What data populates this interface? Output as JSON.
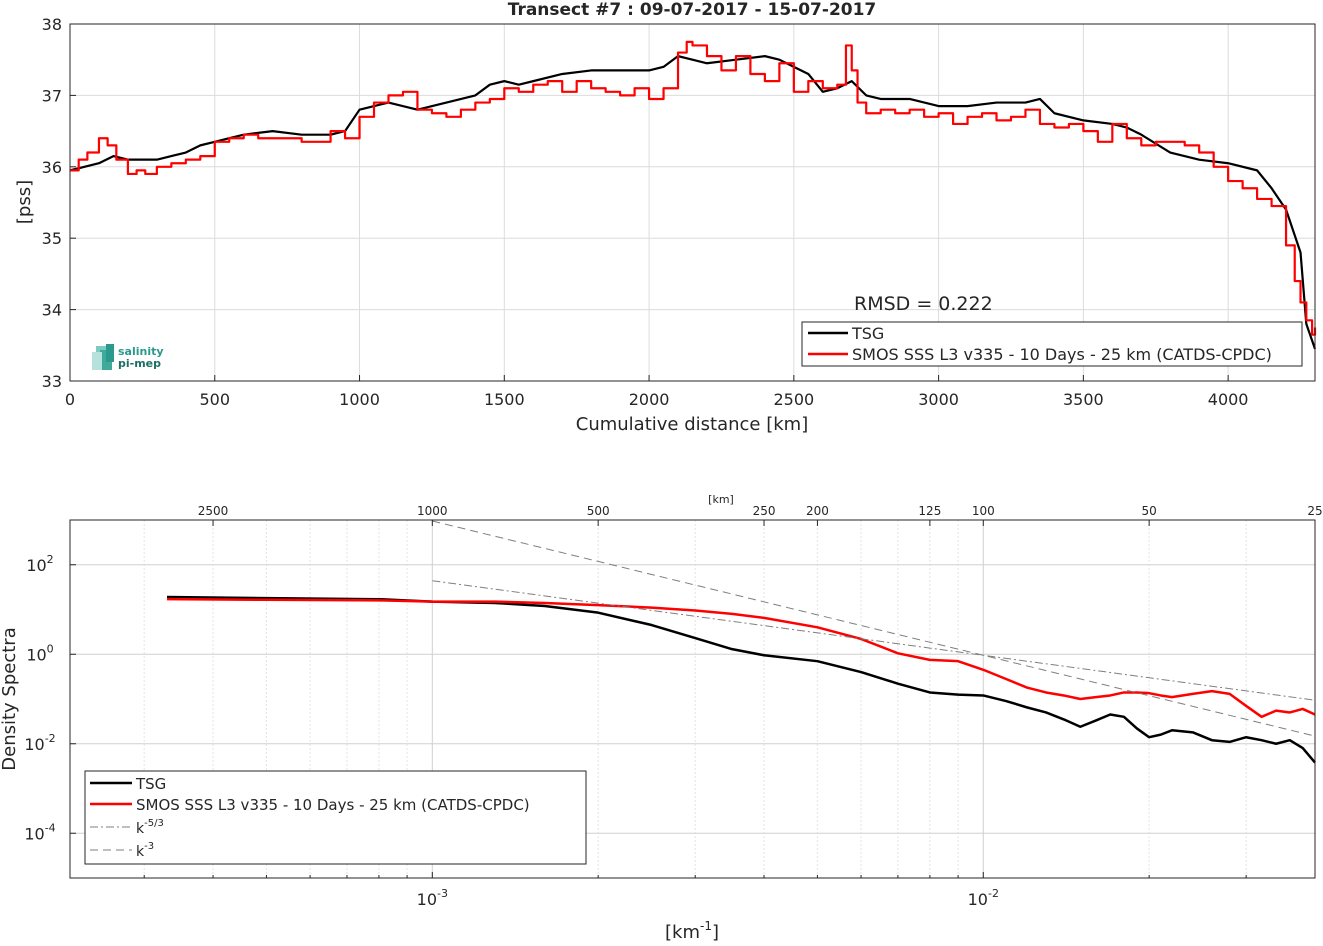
{
  "logo_text": [
    "salinity",
    "pi-mep"
  ],
  "colors": {
    "tsg": "#000000",
    "smos": "#ff0000",
    "ref_lines": "#7f7f7f",
    "grid": "#dcdcdc",
    "logo": "#2a9a8e"
  },
  "chart_data": [
    {
      "type": "line",
      "title": "Transect #7 : 09-07-2017 - 15-07-2017",
      "xlabel": "Cumulative distance [km]",
      "ylabel": "[pss]",
      "xlim": [
        0,
        4300
      ],
      "ylim": [
        33,
        38
      ],
      "xticks": [
        0,
        500,
        1000,
        1500,
        2000,
        2500,
        3000,
        3500,
        4000
      ],
      "yticks": [
        33,
        34,
        35,
        36,
        37,
        38
      ],
      "grid": true,
      "annotation": "RMSD = 0.222",
      "legend": {
        "position": "bottom-right",
        "entries": [
          "TSG",
          "SMOS SSS L3 v335 - 10 Days - 25 km (CATDS-CPDC)"
        ]
      },
      "series": [
        {
          "name": "TSG",
          "x": [
            0,
            50,
            100,
            150,
            200,
            250,
            300,
            350,
            400,
            450,
            500,
            550,
            600,
            700,
            800,
            900,
            950,
            1000,
            1100,
            1200,
            1300,
            1400,
            1450,
            1500,
            1550,
            1600,
            1700,
            1800,
            1900,
            2000,
            2050,
            2100,
            2150,
            2200,
            2300,
            2400,
            2450,
            2500,
            2550,
            2600,
            2650,
            2700,
            2750,
            2800,
            2900,
            3000,
            3100,
            3200,
            3300,
            3350,
            3400,
            3500,
            3600,
            3650,
            3700,
            3800,
            3900,
            4000,
            4100,
            4150,
            4200,
            4250,
            4270,
            4300
          ],
          "y": [
            35.95,
            36.0,
            36.05,
            36.15,
            36.1,
            36.1,
            36.1,
            36.15,
            36.2,
            36.3,
            36.35,
            36.4,
            36.45,
            36.5,
            36.45,
            36.45,
            36.5,
            36.8,
            36.9,
            36.8,
            36.9,
            37.0,
            37.15,
            37.2,
            37.15,
            37.2,
            37.3,
            37.35,
            37.35,
            37.35,
            37.4,
            37.55,
            37.5,
            37.45,
            37.5,
            37.55,
            37.5,
            37.4,
            37.3,
            37.05,
            37.1,
            37.2,
            37.0,
            36.95,
            36.95,
            36.85,
            36.85,
            36.9,
            36.9,
            36.95,
            36.75,
            36.65,
            36.6,
            36.55,
            36.45,
            36.2,
            36.1,
            36.05,
            35.95,
            35.7,
            35.4,
            34.8,
            33.8,
            33.45
          ]
        },
        {
          "name": "SMOS SSS L3 v335 - 10 Days - 25 km (CATDS-CPDC)",
          "x": [
            0,
            30,
            60,
            100,
            130,
            160,
            200,
            230,
            260,
            300,
            350,
            400,
            450,
            500,
            550,
            600,
            650,
            700,
            800,
            900,
            950,
            1000,
            1050,
            1100,
            1150,
            1200,
            1250,
            1300,
            1350,
            1400,
            1450,
            1500,
            1550,
            1600,
            1650,
            1700,
            1750,
            1800,
            1850,
            1900,
            1950,
            2000,
            2050,
            2100,
            2130,
            2150,
            2200,
            2250,
            2300,
            2350,
            2400,
            2450,
            2500,
            2550,
            2600,
            2650,
            2680,
            2700,
            2720,
            2750,
            2800,
            2850,
            2900,
            2950,
            3000,
            3050,
            3100,
            3150,
            3200,
            3250,
            3300,
            3350,
            3400,
            3450,
            3500,
            3550,
            3600,
            3650,
            3700,
            3750,
            3800,
            3850,
            3900,
            3950,
            4000,
            4050,
            4100,
            4150,
            4200,
            4230,
            4250,
            4270,
            4290,
            4300
          ],
          "y": [
            35.95,
            36.1,
            36.2,
            36.4,
            36.3,
            36.1,
            35.9,
            35.95,
            35.9,
            36.0,
            36.05,
            36.1,
            36.15,
            36.35,
            36.4,
            36.45,
            36.4,
            36.4,
            36.35,
            36.5,
            36.4,
            36.7,
            36.9,
            37.0,
            37.05,
            36.8,
            36.75,
            36.7,
            36.8,
            36.9,
            36.95,
            37.1,
            37.05,
            37.15,
            37.2,
            37.05,
            37.2,
            37.1,
            37.05,
            37.0,
            37.1,
            36.95,
            37.1,
            37.6,
            37.75,
            37.7,
            37.55,
            37.35,
            37.55,
            37.3,
            37.2,
            37.45,
            37.05,
            37.2,
            37.1,
            37.15,
            37.7,
            37.35,
            36.9,
            36.75,
            36.8,
            36.75,
            36.8,
            36.7,
            36.75,
            36.6,
            36.7,
            36.75,
            36.65,
            36.7,
            36.8,
            36.6,
            36.55,
            36.6,
            36.5,
            36.35,
            36.6,
            36.4,
            36.3,
            36.35,
            36.35,
            36.3,
            36.2,
            36.0,
            35.8,
            35.7,
            35.55,
            35.45,
            34.9,
            34.4,
            34.1,
            33.85,
            33.65,
            33.75
          ]
        }
      ]
    },
    {
      "type": "line",
      "xscale": "log",
      "yscale": "log",
      "xlabel": "[km^-1]",
      "ylabel": "Density Spectra",
      "xlim": [
        0.00022,
        0.04
      ],
      "ylim": [
        1e-05,
        1000
      ],
      "xticks": [
        0.001,
        0.01
      ],
      "xtick_labels": [
        "10^-3",
        "10^-2"
      ],
      "yticks": [
        0.0001,
        0.01,
        1,
        100
      ],
      "ytick_labels": [
        "10^-4",
        "10^-2",
        "10^0",
        "10^2"
      ],
      "top_axis": {
        "label": "[km]",
        "ticks": [
          2500,
          1000,
          500,
          250,
          200,
          125,
          100,
          50,
          25
        ]
      },
      "grid": true,
      "legend": {
        "position": "bottom-left",
        "entries": [
          "TSG",
          "SMOS SSS L3 v335 - 10 Days - 25 km (CATDS-CPDC)",
          "k^-5/3",
          "k^-3"
        ]
      },
      "series": [
        {
          "name": "TSG",
          "x": [
            0.00033,
            0.0005,
            0.0008,
            0.001,
            0.0013,
            0.0016,
            0.002,
            0.0025,
            0.003,
            0.0035,
            0.004,
            0.005,
            0.006,
            0.007,
            0.008,
            0.009,
            0.01,
            0.011,
            0.012,
            0.013,
            0.014,
            0.015,
            0.016,
            0.017,
            0.018,
            0.019,
            0.02,
            0.021,
            0.022,
            0.024,
            0.026,
            0.028,
            0.03,
            0.032,
            0.034,
            0.036,
            0.038,
            0.04
          ],
          "y": [
            19,
            18,
            17,
            15,
            14,
            12,
            8.5,
            4.5,
            2.3,
            1.3,
            0.95,
            0.7,
            0.4,
            0.22,
            0.14,
            0.125,
            0.12,
            0.09,
            0.065,
            0.05,
            0.035,
            0.024,
            0.033,
            0.045,
            0.04,
            0.022,
            0.014,
            0.016,
            0.02,
            0.018,
            0.012,
            0.011,
            0.014,
            0.012,
            0.01,
            0.012,
            0.008,
            0.0038
          ]
        },
        {
          "name": "SMOS SSS L3 v335 - 10 Days - 25 km (CATDS-CPDC)",
          "x": [
            0.00033,
            0.0005,
            0.0008,
            0.001,
            0.0013,
            0.0016,
            0.002,
            0.0025,
            0.003,
            0.0035,
            0.004,
            0.005,
            0.006,
            0.007,
            0.008,
            0.009,
            0.01,
            0.011,
            0.012,
            0.013,
            0.014,
            0.015,
            0.016,
            0.017,
            0.018,
            0.019,
            0.02,
            0.021,
            0.022,
            0.024,
            0.026,
            0.028,
            0.03,
            0.032,
            0.034,
            0.036,
            0.038,
            0.04
          ],
          "y": [
            17,
            16.5,
            16,
            15,
            15,
            14,
            12.5,
            11,
            9.5,
            8,
            6.5,
            4,
            2.2,
            1.05,
            0.75,
            0.7,
            0.45,
            0.28,
            0.18,
            0.14,
            0.12,
            0.1,
            0.11,
            0.12,
            0.14,
            0.14,
            0.135,
            0.12,
            0.11,
            0.13,
            0.15,
            0.13,
            0.07,
            0.04,
            0.055,
            0.05,
            0.06,
            0.045
          ]
        },
        {
          "name": "k^-5/3",
          "x": [
            0.001,
            0.04
          ],
          "y": [
            44,
            0.094
          ]
        },
        {
          "name": "k^-3",
          "x": [
            0.001,
            0.04
          ],
          "y": [
            950,
            0.0148
          ]
        }
      ]
    }
  ]
}
